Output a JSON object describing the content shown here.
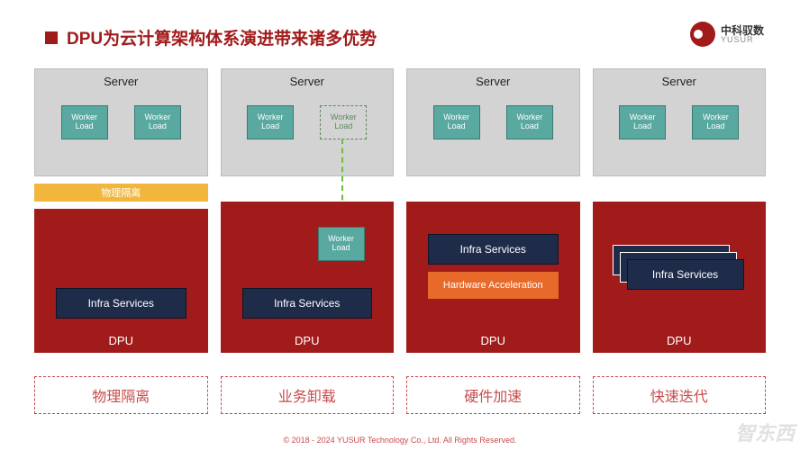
{
  "title": {
    "square_color": "#a11b1b",
    "text_color": "#a11b1b",
    "text": "DPU为云计算架构体系演进带来诸多优势"
  },
  "logo": {
    "cn": "中科驭数",
    "en": "YUSUR"
  },
  "labels": {
    "server": "Server",
    "worker_load": "Worker\nLoad",
    "dpu": "DPU",
    "infra": "Infra Services",
    "hwacc": "Hardware Acceleration",
    "isolation_bar": "物理隔离"
  },
  "columns": [
    {
      "caption": "物理隔离",
      "has_iso_bar": true
    },
    {
      "caption": "业务卸载",
      "offload": true
    },
    {
      "caption": "硬件加速",
      "hwacc": true
    },
    {
      "caption": "快速迭代",
      "stacked": true
    }
  ],
  "colors": {
    "server_bg": "#d3d3d3",
    "worker_bg": "#5aa9a0",
    "dpu_bg": "#a11b1b",
    "infra_bg": "#1e2c4a",
    "hwacc_bg": "#e86a2a",
    "iso_bg": "#f2b63c",
    "caption_border": "#c94a4a",
    "arrow": "#6abf3a"
  },
  "footer": "© 2018 - 2024 YUSUR Technology Co., Ltd. All Rights Reserved.",
  "watermark": "智东西"
}
